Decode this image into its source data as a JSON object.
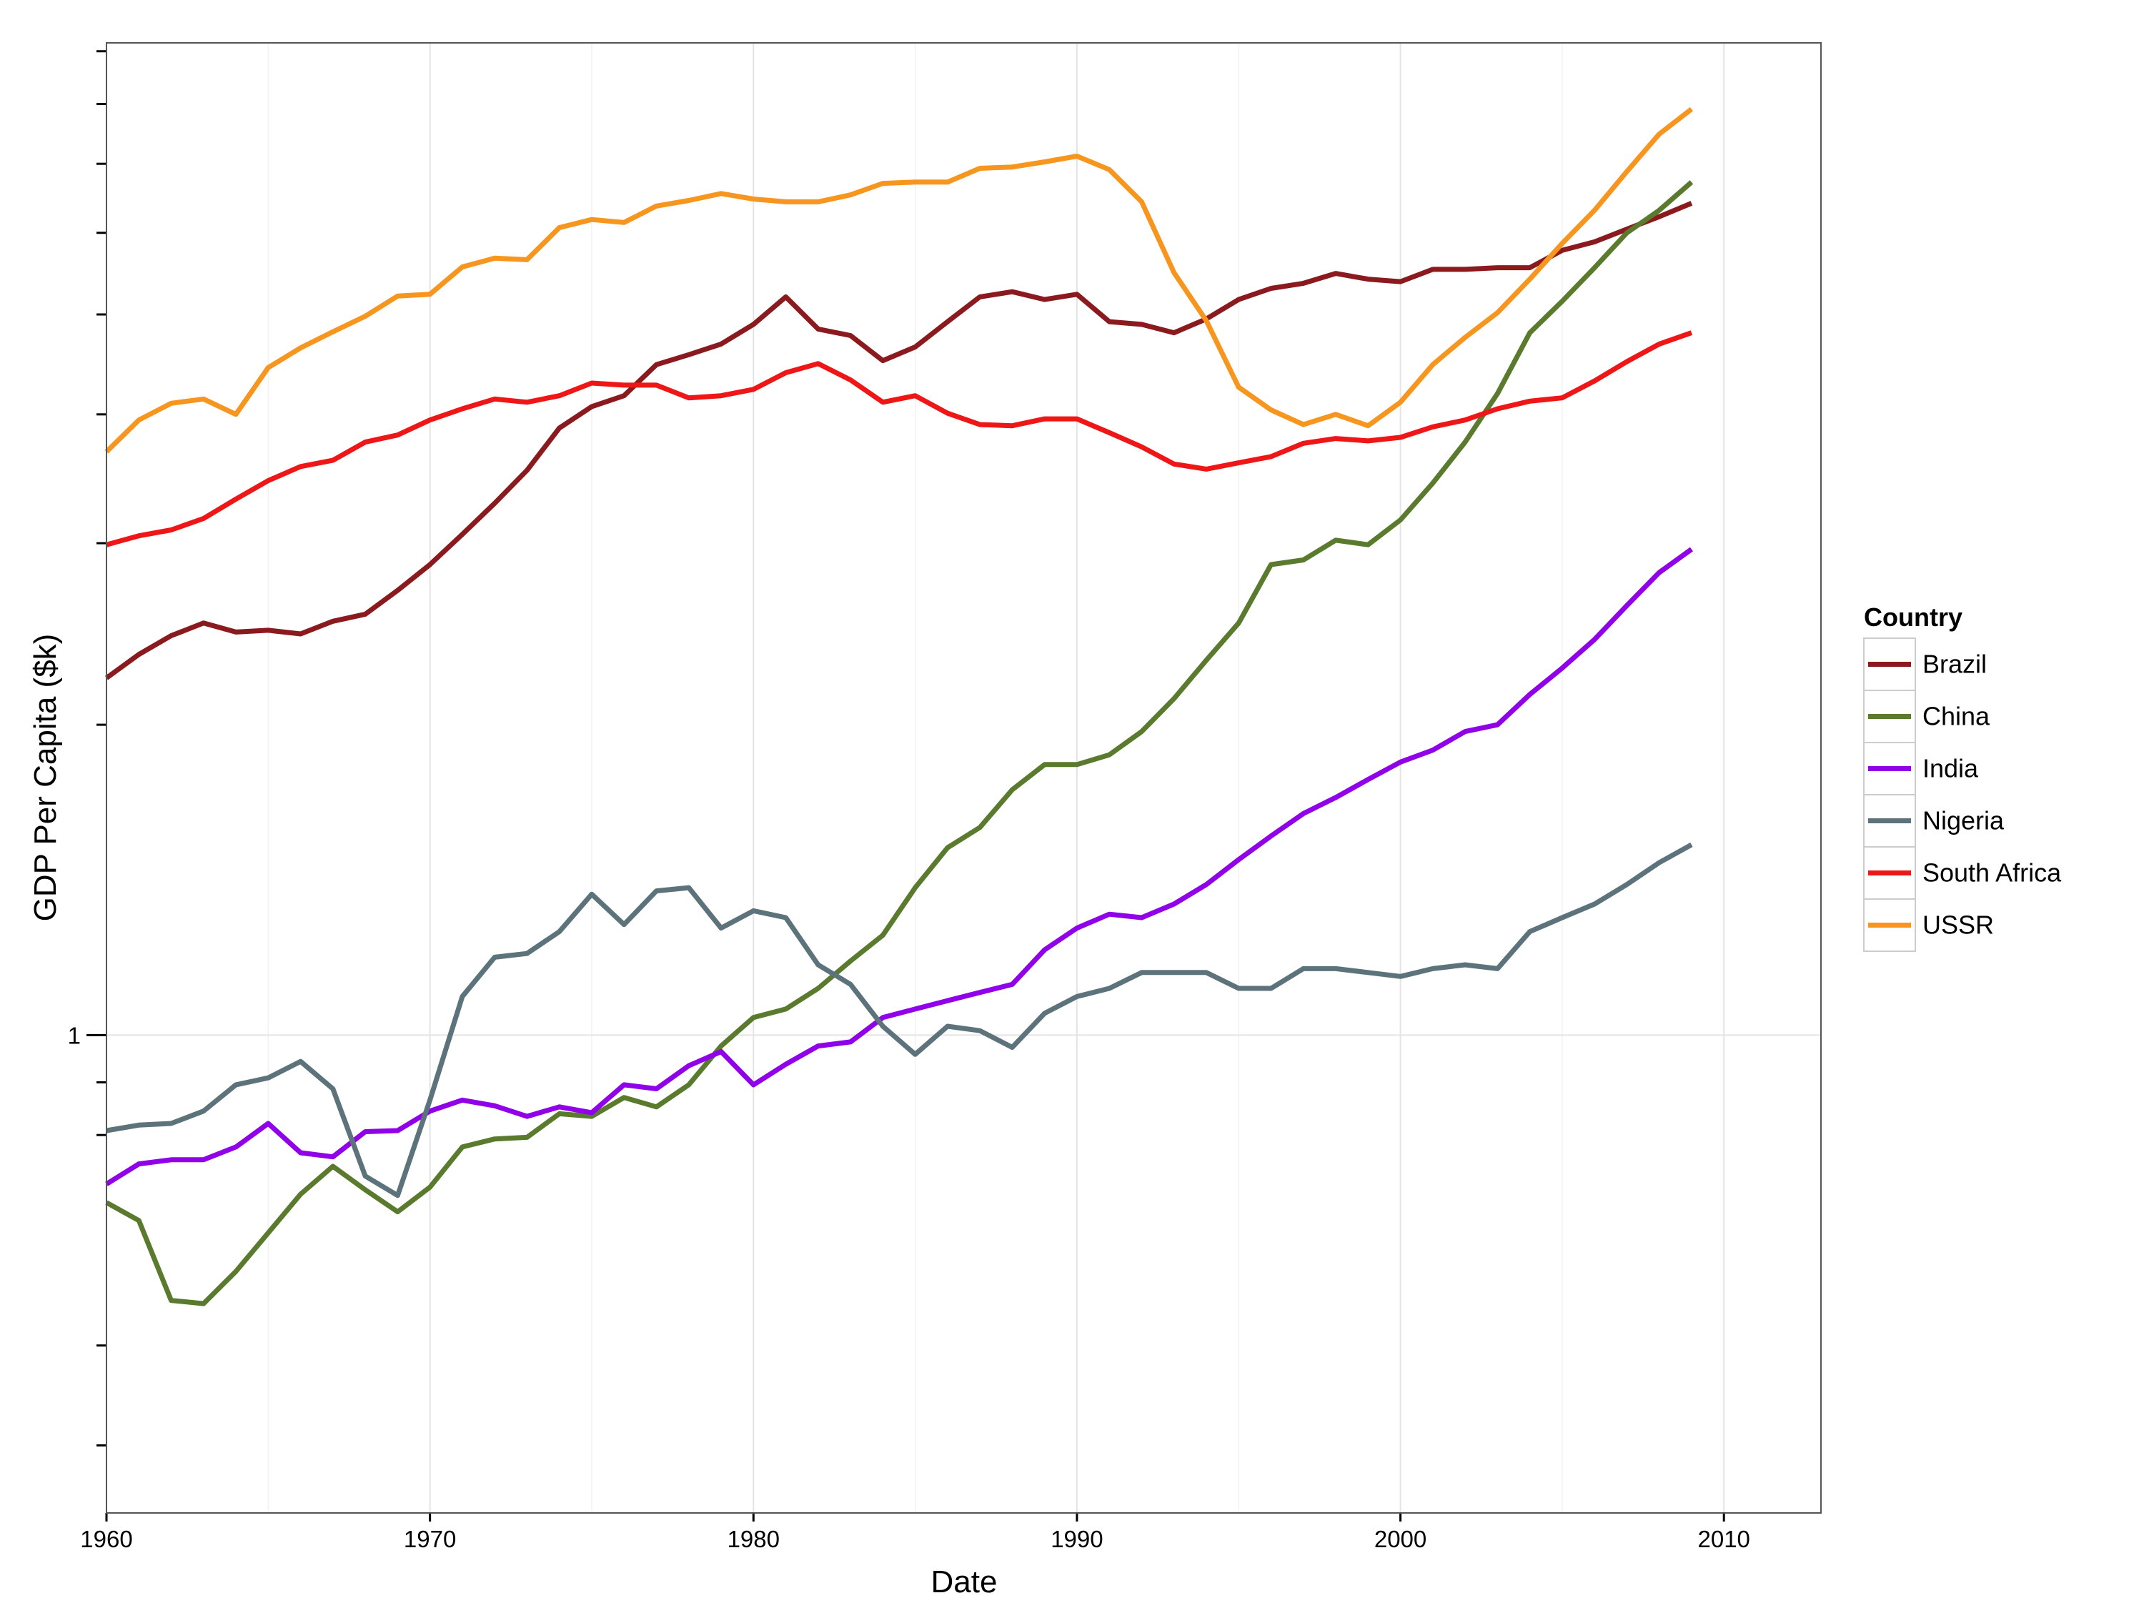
{
  "chart_data": {
    "type": "line",
    "x_label": "Date",
    "y_label": "GDP Per Capita ($k)",
    "legend_title": "Country",
    "legend": "right",
    "log_y": true,
    "grid": true,
    "xlim": [
      1960,
      2013
    ],
    "xticks": [
      1960,
      1970,
      1980,
      1990,
      2000,
      2010
    ],
    "xminorticks": [
      1965,
      1975,
      1985,
      1995,
      2005
    ],
    "ylim": [
      0.344,
      9.17
    ],
    "yticks": [
      1
    ],
    "yminorticks": [
      0.4,
      0.5,
      0.8,
      0.9,
      2,
      3,
      4,
      5,
      6,
      7,
      8,
      9
    ],
    "x": [
      1960,
      1961,
      1962,
      1963,
      1964,
      1965,
      1966,
      1967,
      1968,
      1969,
      1970,
      1971,
      1972,
      1973,
      1974,
      1975,
      1976,
      1977,
      1978,
      1979,
      1980,
      1981,
      1982,
      1983,
      1984,
      1985,
      1986,
      1987,
      1988,
      1989,
      1990,
      1991,
      1992,
      1993,
      1994,
      1995,
      1996,
      1997,
      1998,
      1999,
      2000,
      2001,
      2002,
      2003,
      2004,
      2005,
      2006,
      2007,
      2008,
      2009
    ],
    "series": [
      {
        "name": "Brazil",
        "color": "#8b1a1f",
        "values": [
          2.22,
          2.34,
          2.44,
          2.51,
          2.46,
          2.47,
          2.45,
          2.52,
          2.56,
          2.7,
          2.86,
          3.06,
          3.28,
          3.53,
          3.88,
          4.07,
          4.17,
          4.47,
          4.57,
          4.68,
          4.89,
          5.2,
          4.84,
          4.77,
          4.51,
          4.65,
          4.92,
          5.2,
          5.26,
          5.17,
          5.23,
          4.92,
          4.89,
          4.8,
          4.95,
          5.17,
          5.3,
          5.36,
          5.48,
          5.41,
          5.38,
          5.53,
          5.53,
          5.55,
          5.55,
          5.77,
          5.88,
          6.05,
          6.22,
          6.41
        ]
      },
      {
        "name": "China",
        "color": "#5a7a2e",
        "values": [
          0.688,
          0.661,
          0.553,
          0.549,
          0.59,
          0.643,
          0.701,
          0.746,
          0.708,
          0.674,
          0.712,
          0.779,
          0.793,
          0.796,
          0.839,
          0.834,
          0.87,
          0.852,
          0.895,
          0.976,
          1.04,
          1.06,
          1.11,
          1.18,
          1.25,
          1.39,
          1.52,
          1.59,
          1.73,
          1.83,
          1.83,
          1.87,
          1.97,
          2.12,
          2.31,
          2.51,
          2.86,
          2.89,
          3.02,
          2.99,
          3.16,
          3.43,
          3.76,
          4.19,
          4.8,
          5.15,
          5.55,
          6.0,
          6.31,
          6.72
        ]
      },
      {
        "name": "India",
        "color": "#9000e8",
        "values": [
          0.717,
          0.75,
          0.757,
          0.757,
          0.779,
          0.821,
          0.769,
          0.762,
          0.806,
          0.808,
          0.844,
          0.865,
          0.854,
          0.834,
          0.852,
          0.841,
          0.895,
          0.887,
          0.934,
          0.964,
          0.895,
          0.937,
          0.976,
          0.985,
          1.04,
          1.06,
          1.08,
          1.1,
          1.12,
          1.21,
          1.27,
          1.31,
          1.3,
          1.34,
          1.4,
          1.48,
          1.56,
          1.64,
          1.7,
          1.77,
          1.84,
          1.89,
          1.97,
          2.0,
          2.14,
          2.27,
          2.42,
          2.61,
          2.81,
          2.96
        ]
      },
      {
        "name": "Nigeria",
        "color": "#5d737b",
        "values": [
          0.808,
          0.818,
          0.821,
          0.844,
          0.895,
          0.909,
          0.943,
          0.887,
          0.73,
          0.699,
          0.865,
          1.09,
          1.19,
          1.2,
          1.26,
          1.37,
          1.28,
          1.38,
          1.39,
          1.27,
          1.32,
          1.3,
          1.17,
          1.12,
          1.02,
          0.958,
          1.02,
          1.01,
          0.973,
          1.05,
          1.09,
          1.11,
          1.15,
          1.15,
          1.15,
          1.11,
          1.11,
          1.16,
          1.16,
          1.15,
          1.14,
          1.16,
          1.17,
          1.16,
          1.26,
          1.3,
          1.34,
          1.4,
          1.47,
          1.53
        ]
      },
      {
        "name": "South Africa",
        "color": "#ee1616",
        "values": [
          2.99,
          3.05,
          3.09,
          3.17,
          3.31,
          3.45,
          3.56,
          3.61,
          3.76,
          3.82,
          3.95,
          4.05,
          4.14,
          4.11,
          4.17,
          4.29,
          4.27,
          4.27,
          4.15,
          4.17,
          4.23,
          4.39,
          4.48,
          4.32,
          4.11,
          4.17,
          4.01,
          3.91,
          3.9,
          3.96,
          3.96,
          3.84,
          3.72,
          3.58,
          3.54,
          3.59,
          3.64,
          3.75,
          3.79,
          3.77,
          3.8,
          3.89,
          3.95,
          4.05,
          4.12,
          4.15,
          4.31,
          4.5,
          4.68,
          4.8
        ]
      },
      {
        "name": "USSR",
        "color": "#f7961e",
        "values": [
          3.68,
          3.95,
          4.1,
          4.14,
          4.0,
          4.44,
          4.64,
          4.81,
          4.98,
          5.21,
          5.23,
          5.56,
          5.67,
          5.65,
          6.07,
          6.18,
          6.14,
          6.37,
          6.45,
          6.55,
          6.47,
          6.43,
          6.43,
          6.53,
          6.7,
          6.72,
          6.72,
          6.93,
          6.95,
          7.03,
          7.12,
          6.91,
          6.43,
          5.49,
          4.93,
          4.25,
          4.04,
          3.91,
          4.0,
          3.9,
          4.11,
          4.47,
          4.75,
          5.02,
          5.41,
          5.86,
          6.31,
          6.88,
          7.48,
          7.91
        ]
      }
    ]
  }
}
